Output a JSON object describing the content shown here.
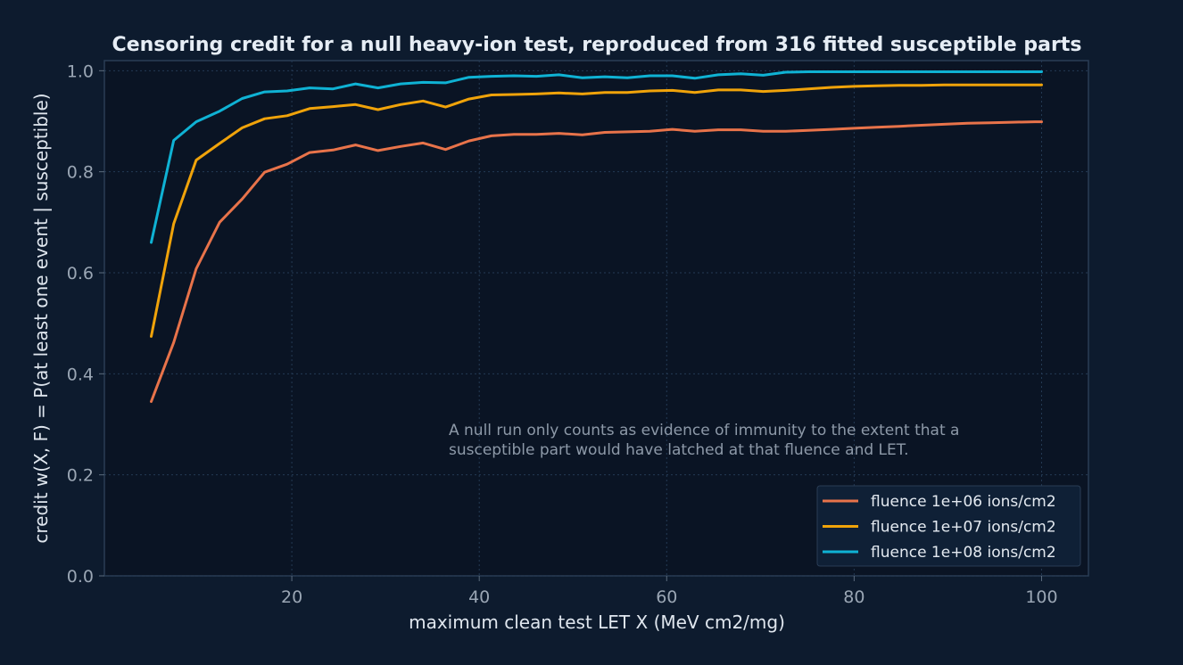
{
  "chart_data": {
    "type": "line",
    "title": "Censoring credit for a null heavy-ion test, reproduced from 316 fitted susceptible parts",
    "xlabel": "maximum clean test LET X (MeV cm2/mg)",
    "ylabel": "credit w(X, F) = P(at least one event | susceptible)",
    "xlim": [
      0,
      105
    ],
    "ylim": [
      0,
      1.02
    ],
    "xticks": [
      20,
      40,
      60,
      80,
      100
    ],
    "yticks": [
      0.0,
      0.2,
      0.4,
      0.6,
      0.8,
      1.0
    ],
    "xtick_labels": [
      "20",
      "40",
      "60",
      "80",
      "100"
    ],
    "ytick_labels": [
      "0.0",
      "0.2",
      "0.4",
      "0.6",
      "0.8",
      "1.0"
    ],
    "grid": true,
    "legend_position": "bottom-right",
    "annotation": [
      "A null run only counts as evidence of immunity to the extent that a",
      "susceptible part would have latched at that fluence and LET."
    ],
    "x": [
      5.0,
      7.4,
      9.8,
      12.3,
      14.7,
      17.1,
      19.5,
      21.9,
      24.4,
      26.8,
      29.2,
      31.6,
      34.0,
      36.4,
      38.9,
      41.3,
      43.7,
      46.1,
      48.5,
      51.0,
      53.4,
      55.8,
      58.2,
      60.6,
      63.0,
      65.5,
      67.9,
      70.3,
      72.7,
      75.1,
      77.6,
      80.0,
      82.4,
      84.8,
      87.2,
      89.6,
      92.1,
      94.5,
      96.9,
      99.3,
      100.0
    ],
    "series": [
      {
        "name": "fluence 1e+06 ions/cm2",
        "color": "#e8734a",
        "values": [
          0.345,
          0.462,
          0.608,
          0.7,
          0.746,
          0.799,
          0.815,
          0.838,
          0.843,
          0.853,
          0.842,
          0.85,
          0.857,
          0.844,
          0.861,
          0.871,
          0.874,
          0.874,
          0.876,
          0.873,
          0.878,
          0.879,
          0.88,
          0.884,
          0.88,
          0.883,
          0.883,
          0.88,
          0.88,
          0.882,
          0.884,
          0.886,
          0.888,
          0.89,
          0.892,
          0.894,
          0.896,
          0.897,
          0.898,
          0.899,
          0.899
        ]
      },
      {
        "name": "fluence 1e+07 ions/cm2",
        "color": "#f0a30a",
        "values": [
          0.474,
          0.697,
          0.823,
          0.856,
          0.887,
          0.905,
          0.911,
          0.925,
          0.929,
          0.933,
          0.923,
          0.933,
          0.94,
          0.928,
          0.944,
          0.952,
          0.953,
          0.954,
          0.956,
          0.954,
          0.957,
          0.957,
          0.96,
          0.961,
          0.957,
          0.962,
          0.962,
          0.959,
          0.961,
          0.964,
          0.967,
          0.969,
          0.97,
          0.971,
          0.971,
          0.972,
          0.972,
          0.972,
          0.972,
          0.972,
          0.972
        ]
      },
      {
        "name": "fluence 1e+08 ions/cm2",
        "color": "#0fb2d4",
        "values": [
          0.66,
          0.862,
          0.899,
          0.92,
          0.945,
          0.958,
          0.96,
          0.966,
          0.964,
          0.974,
          0.966,
          0.974,
          0.977,
          0.976,
          0.987,
          0.989,
          0.99,
          0.989,
          0.992,
          0.986,
          0.988,
          0.986,
          0.99,
          0.99,
          0.985,
          0.992,
          0.994,
          0.991,
          0.997,
          0.998,
          0.998,
          0.998,
          0.998,
          0.998,
          0.998,
          0.998,
          0.998,
          0.998,
          0.998,
          0.998,
          0.998
        ]
      }
    ]
  }
}
